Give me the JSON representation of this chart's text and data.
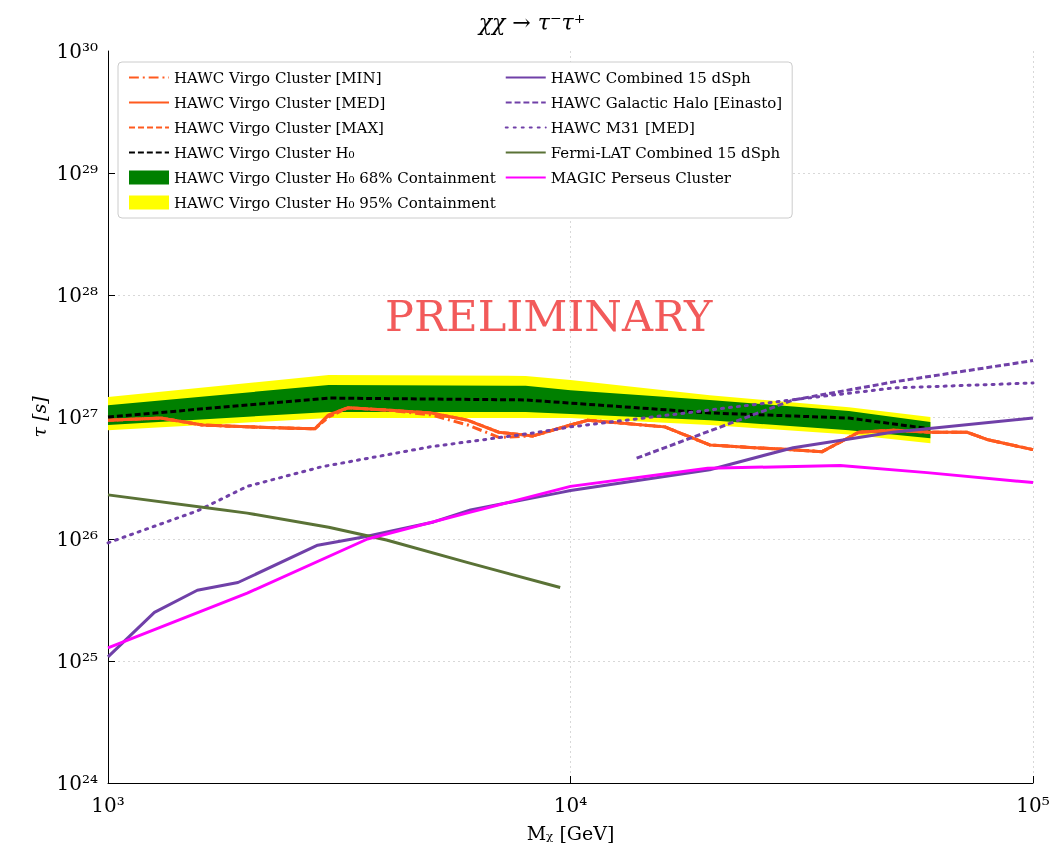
{
  "chart_data": {
    "type": "line",
    "title": "χχ → τ⁻τ⁺",
    "xlabel": "Mᵪ [GeV]",
    "ylabel": "τ [s]",
    "log": "xy",
    "grid": true,
    "legend": "top",
    "marker": "none",
    "xlim": [
      1000,
      100000
    ],
    "xticks": [
      {
        "value": 1000,
        "label": "10³"
      },
      {
        "value": 10000,
        "label": "10⁴"
      },
      {
        "value": 100000,
        "label": "10⁵"
      }
    ],
    "ylim": [
      1e+24,
      1e+30
    ],
    "yticks": [
      {
        "value": 1e+24,
        "label": "10²⁴"
      },
      {
        "value": 1e+25,
        "label": "10²⁵"
      },
      {
        "value": 1e+26,
        "label": "10²⁶"
      },
      {
        "value": 1e+27,
        "label": "10²⁷"
      },
      {
        "value": 1e+28,
        "label": "10²⁸"
      },
      {
        "value": 1e+29,
        "label": "10²⁹"
      },
      {
        "value": 1e+30,
        "label": "10³⁰"
      }
    ],
    "annotations": [
      "PRELIMINARY"
    ],
    "series": [
      {
        "name": "HAWC Virgo Cluster H₀ 95% Containment",
        "color": "#ffff00",
        "x": [
          1000,
          3000,
          8000,
          10000,
          20000,
          40000,
          60000
        ],
        "values": [
          null,
          null,
          null,
          null,
          null,
          null,
          null
        ],
        "lower": [
          7.8e+26,
          9.8e+26,
          9.8e+26,
          9.8e+26,
          8.6e+26,
          7.2e+26,
          6.1e+26
        ],
        "upper": [
          1.46e+27,
          2.21e+27,
          2.17e+27,
          2.01e+27,
          1.51e+27,
          1.2e+27,
          1e+27
        ]
      },
      {
        "name": "HAWC Virgo Cluster H₀ 68% Containment",
        "color": "#008000",
        "x": [
          1000,
          3000,
          8000,
          10000,
          20000,
          40000,
          60000
        ],
        "values": [
          null,
          null,
          null,
          null,
          null,
          null,
          null
        ],
        "lower": [
          8.6e+26,
          1.1e+27,
          1.1e+27,
          1.06e+27,
          9.4e+26,
          7.8e+26,
          6.7e+26
        ],
        "upper": [
          1.25e+27,
          1.83e+27,
          1.8e+27,
          1.66e+27,
          1.38e+27,
          1.12e+27,
          9.1e+26
        ]
      },
      {
        "name": "HAWC Virgo Cluster [MIN]",
        "color": "#ff5a1f",
        "line_style": "dashdot",
        "x": [
          1000,
          1300,
          1600,
          2000,
          2500,
          2800,
          3000,
          3300,
          4000,
          5000,
          6000,
          7000,
          8300,
          10000,
          10900,
          16000,
          20000,
          25000,
          30000,
          35000,
          42000,
          50000,
          60000,
          72000,
          80000,
          100000
        ],
        "values": [
          9.4e+26,
          9.8e+26,
          8.6e+26,
          8.3e+26,
          8.1e+26,
          8e+26,
          1.04e+27,
          1.19e+27,
          1.14e+27,
          1.04e+27,
          8.6e+26,
          6.8e+26,
          7e+26,
          8.6e+26,
          9.4e+26,
          8.3e+26,
          5.9e+26,
          5.6e+26,
          5.4e+26,
          5.2e+26,
          7.5e+26,
          7.8e+26,
          7.5e+26,
          7.5e+26,
          6.5e+26,
          5.4e+26
        ]
      },
      {
        "name": "HAWC Virgo Cluster [MED]",
        "color": "#ff5a1f",
        "line_style": "solid",
        "x": [
          1000,
          1300,
          1600,
          2000,
          2500,
          2800,
          3000,
          3300,
          4000,
          5000,
          6000,
          7000,
          8300,
          10000,
          10900,
          16000,
          20000,
          25000,
          30000,
          35000,
          42000,
          50000,
          60000,
          72000,
          80000,
          100000
        ],
        "values": [
          9.4e+26,
          9.8e+26,
          8.6e+26,
          8.3e+26,
          8.1e+26,
          8e+26,
          1.04e+27,
          1.19e+27,
          1.14e+27,
          1.08e+27,
          9.4e+26,
          7.5e+26,
          7e+26,
          8.6e+26,
          9.4e+26,
          8.3e+26,
          5.9e+26,
          5.6e+26,
          5.4e+26,
          5.2e+26,
          7.5e+26,
          7.8e+26,
          7.5e+26,
          7.5e+26,
          6.5e+26,
          5.4e+26
        ]
      },
      {
        "name": "HAWC Virgo Cluster [MAX]",
        "color": "#ff5a1f",
        "line_style": "dashed",
        "x": [
          1000,
          1300,
          1600,
          2000,
          2500,
          2800,
          3000,
          3300,
          4000,
          5000,
          6000,
          7000,
          8300,
          10000,
          10900,
          16000,
          20000,
          25000,
          30000,
          35000,
          42000,
          50000,
          60000,
          72000,
          80000,
          100000
        ],
        "values": [
          9.4e+26,
          9.8e+26,
          8.6e+26,
          8.3e+26,
          8.1e+26,
          8e+26,
          1e+27,
          1.19e+27,
          1.14e+27,
          1.08e+27,
          9.4e+26,
          7.5e+26,
          7e+26,
          8.6e+26,
          9.4e+26,
          8.3e+26,
          5.9e+26,
          5.6e+26,
          5.4e+26,
          5.2e+26,
          7.5e+26,
          7.8e+26,
          7.5e+26,
          7.5e+26,
          6.5e+26,
          5.4e+26
        ]
      },
      {
        "name": "HAWC Virgo Cluster H₀",
        "color": "#000000",
        "line_style": "dashed",
        "x": [
          1000,
          3000,
          8000,
          10000,
          20000,
          40000,
          60000
        ],
        "values": [
          1e+27,
          1.43e+27,
          1.38e+27,
          1.3e+27,
          1.08e+27,
          9.8e+26,
          8e+26
        ]
      },
      {
        "name": "HAWC Combined 15 dSph",
        "color": "#7040a8",
        "line_style": "solid",
        "x": [
          1000,
          1260,
          1560,
          1910,
          2840,
          3570,
          5060,
          6080,
          9500,
          10000,
          20000,
          30300,
          49700,
          100000
        ],
        "values": [
          1.08e+25,
          2.5e+25,
          3.8e+25,
          4.4e+25,
          8.9e+25,
          1.04e+26,
          1.38e+26,
          1.73e+26,
          2.4e+26,
          2.5e+26,
          3.7e+26,
          5.6e+26,
          7.5e+26,
          9.8e+26
        ]
      },
      {
        "name": "HAWC Galactic Halo [Einasto]",
        "color": "#7040a8",
        "line_style": "dashed",
        "x": [
          13900,
          30300,
          50000,
          100000
        ],
        "values": [
          4.6e+26,
          1.38e+27,
          1.94e+27,
          2.9e+27
        ]
      },
      {
        "name": "HAWC M31 [MED]",
        "color": "#7040a8",
        "line_style": "dotted",
        "x": [
          1000,
          1560,
          2000,
          2890,
          4980,
          8330,
          10000,
          20000,
          30000,
          50000,
          100000
        ],
        "values": [
          9.3e+25,
          1.7e+26,
          2.7e+26,
          3.9e+26,
          5.7e+26,
          7.4e+26,
          8.3e+26,
          1.14e+27,
          1.38e+27,
          1.73e+27,
          1.9e+27
        ]
      },
      {
        "name": "Fermi-LAT Combined 15 dSph",
        "color": "#5a7236",
        "line_style": "solid",
        "x": [
          1000,
          2000,
          3000,
          4000,
          6000,
          9500
        ],
        "values": [
          2.3e+26,
          1.63e+26,
          1.25e+26,
          9.8e+25,
          6.4e+25,
          4e+25
        ]
      },
      {
        "name": "MAGIC Perseus Cluster",
        "color": "#ff00ff",
        "line_style": "solid",
        "x": [
          1000,
          2000,
          3640,
          6080,
          10000,
          19800,
          38300,
          59000,
          100000
        ],
        "values": [
          1.28e+25,
          3.6e+25,
          1e+26,
          1.66e+26,
          2.7e+26,
          3.8e+26,
          4e+26,
          3.5e+26,
          2.9e+26
        ]
      }
    ]
  }
}
